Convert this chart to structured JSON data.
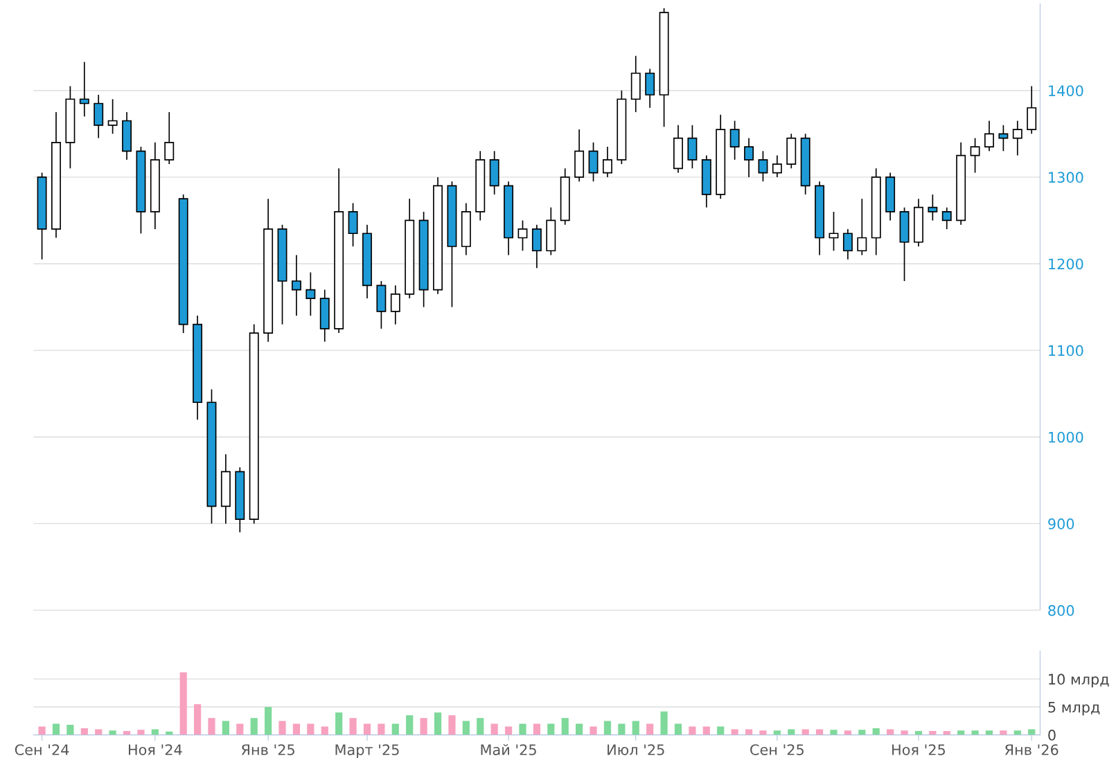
{
  "chart_data": [
    {
      "type": "candlestick",
      "categories": [
        null,
        null,
        null,
        null,
        null,
        null,
        null,
        null,
        null,
        null,
        null,
        null,
        null,
        null,
        null,
        null,
        null,
        null,
        null,
        null,
        null,
        null,
        null,
        null,
        null,
        null,
        null,
        null,
        null,
        null,
        null,
        null,
        null,
        null,
        null,
        null,
        null,
        null,
        null,
        null,
        null,
        null,
        null,
        null,
        null,
        null,
        null,
        null,
        null,
        null,
        null,
        null,
        null,
        null,
        null,
        null,
        null,
        null,
        null,
        null,
        null,
        null,
        null,
        null,
        null,
        null,
        null,
        null,
        null,
        null,
        null
      ],
      "ohlc": [
        [
          1300,
          1305,
          1205,
          1240
        ],
        [
          1240,
          1375,
          1230,
          1340
        ],
        [
          1340,
          1405,
          1310,
          1390
        ],
        [
          1390,
          1433,
          1370,
          1385
        ],
        [
          1385,
          1395,
          1345,
          1360
        ],
        [
          1360,
          1390,
          1350,
          1365
        ],
        [
          1365,
          1375,
          1320,
          1330
        ],
        [
          1330,
          1335,
          1235,
          1260
        ],
        [
          1260,
          1340,
          1240,
          1320
        ],
        [
          1320,
          1375,
          1315,
          1340
        ],
        [
          1275,
          1280,
          1120,
          1130
        ],
        [
          1130,
          1140,
          1020,
          1040
        ],
        [
          1040,
          1055,
          900,
          920
        ],
        [
          920,
          980,
          900,
          960
        ],
        [
          960,
          965,
          890,
          905
        ],
        [
          905,
          1130,
          900,
          1120
        ],
        [
          1120,
          1275,
          1110,
          1240
        ],
        [
          1240,
          1245,
          1130,
          1180
        ],
        [
          1180,
          1210,
          1140,
          1170
        ],
        [
          1170,
          1190,
          1140,
          1160
        ],
        [
          1160,
          1170,
          1110,
          1125
        ],
        [
          1125,
          1310,
          1120,
          1260
        ],
        [
          1260,
          1270,
          1220,
          1235
        ],
        [
          1235,
          1245,
          1160,
          1175
        ],
        [
          1175,
          1180,
          1125,
          1145
        ],
        [
          1145,
          1175,
          1130,
          1165
        ],
        [
          1165,
          1275,
          1160,
          1250
        ],
        [
          1250,
          1260,
          1150,
          1170
        ],
        [
          1170,
          1300,
          1165,
          1290
        ],
        [
          1290,
          1295,
          1150,
          1220
        ],
        [
          1220,
          1270,
          1210,
          1260
        ],
        [
          1260,
          1330,
          1250,
          1320
        ],
        [
          1320,
          1330,
          1280,
          1290
        ],
        [
          1290,
          1295,
          1210,
          1230
        ],
        [
          1230,
          1250,
          1215,
          1240
        ],
        [
          1240,
          1245,
          1195,
          1215
        ],
        [
          1215,
          1265,
          1210,
          1250
        ],
        [
          1250,
          1310,
          1245,
          1300
        ],
        [
          1300,
          1355,
          1295,
          1330
        ],
        [
          1330,
          1340,
          1295,
          1305
        ],
        [
          1305,
          1335,
          1300,
          1320
        ],
        [
          1320,
          1400,
          1315,
          1390
        ],
        [
          1390,
          1440,
          1375,
          1420
        ],
        [
          1420,
          1425,
          1380,
          1395
        ],
        [
          1395,
          1495,
          1358,
          1490
        ],
        [
          1310,
          1360,
          1305,
          1345
        ],
        [
          1345,
          1360,
          1310,
          1320
        ],
        [
          1320,
          1325,
          1265,
          1280
        ],
        [
          1280,
          1372,
          1275,
          1355
        ],
        [
          1355,
          1365,
          1320,
          1335
        ],
        [
          1335,
          1345,
          1300,
          1320
        ],
        [
          1320,
          1330,
          1295,
          1305
        ],
        [
          1305,
          1325,
          1300,
          1315
        ],
        [
          1315,
          1350,
          1310,
          1345
        ],
        [
          1345,
          1350,
          1280,
          1290
        ],
        [
          1290,
          1295,
          1210,
          1230
        ],
        [
          1230,
          1260,
          1215,
          1235
        ],
        [
          1235,
          1240,
          1205,
          1215
        ],
        [
          1215,
          1275,
          1210,
          1230
        ],
        [
          1230,
          1310,
          1210,
          1300
        ],
        [
          1300,
          1305,
          1250,
          1260
        ],
        [
          1260,
          1265,
          1180,
          1225
        ],
        [
          1225,
          1275,
          1220,
          1265
        ],
        [
          1265,
          1280,
          1250,
          1260
        ],
        [
          1260,
          1265,
          1240,
          1250
        ],
        [
          1250,
          1340,
          1245,
          1325
        ],
        [
          1325,
          1345,
          1305,
          1335
        ],
        [
          1335,
          1365,
          1330,
          1350
        ],
        [
          1350,
          1360,
          1330,
          1345
        ],
        [
          1345,
          1365,
          1325,
          1355
        ],
        [
          1355,
          1405,
          1350,
          1380
        ]
      ],
      "colors": [
        "#1e9bd7",
        "#ffffff",
        "#ffffff",
        "#1e9bd7",
        "#1e9bd7",
        "#ffffff",
        "#1e9bd7",
        "#1e9bd7",
        "#ffffff",
        "#ffffff",
        "#1e9bd7",
        "#1e9bd7",
        "#1e9bd7",
        "#ffffff",
        "#1e9bd7",
        "#ffffff",
        "#ffffff",
        "#1e9bd7",
        "#1e9bd7",
        "#1e9bd7",
        "#1e9bd7",
        "#ffffff",
        "#1e9bd7",
        "#1e9bd7",
        "#1e9bd7",
        "#ffffff",
        "#ffffff",
        "#1e9bd7",
        "#ffffff",
        "#1e9bd7",
        "#ffffff",
        "#ffffff",
        "#1e9bd7",
        "#1e9bd7",
        "#ffffff",
        "#1e9bd7",
        "#ffffff",
        "#ffffff",
        "#ffffff",
        "#1e9bd7",
        "#ffffff",
        "#ffffff",
        "#ffffff",
        "#1e9bd7",
        "#ffffff",
        "#ffffff",
        "#1e9bd7",
        "#1e9bd7",
        "#ffffff",
        "#1e9bd7",
        "#1e9bd7",
        "#1e9bd7",
        "#ffffff",
        "#ffffff",
        "#1e9bd7",
        "#1e9bd7",
        "#ffffff",
        "#1e9bd7",
        "#ffffff",
        "#ffffff",
        "#1e9bd7",
        "#1e9bd7",
        "#ffffff",
        "#1e9bd7",
        "#1e9bd7",
        "#ffffff",
        "#ffffff",
        "#ffffff",
        "#1e9bd7",
        "#ffffff",
        "#ffffff"
      ],
      "ylim": [
        800,
        1500
      ],
      "yticks": [
        800,
        900,
        1000,
        1100,
        1200,
        1300,
        1400
      ],
      "grid": "y",
      "tick_labels": "y"
    },
    {
      "type": "bar",
      "categories": [
        "Сен '24",
        null,
        null,
        null,
        null,
        null,
        null,
        null,
        "Ноя '24",
        null,
        null,
        null,
        null,
        null,
        null,
        null,
        "Янв '25",
        null,
        null,
        null,
        null,
        null,
        null,
        "Март '25",
        null,
        null,
        null,
        null,
        null,
        null,
        null,
        null,
        null,
        "Май '25",
        null,
        null,
        null,
        null,
        null,
        null,
        null,
        null,
        "Июл '25",
        null,
        null,
        null,
        null,
        null,
        null,
        null,
        null,
        null,
        "Сен '25",
        null,
        null,
        null,
        null,
        null,
        null,
        null,
        null,
        null,
        "Ноя '25",
        null,
        null,
        null,
        null,
        null,
        null,
        null,
        "Янв '26"
      ],
      "values": [
        1.5,
        2,
        1.8,
        1.2,
        1,
        0.8,
        0.7,
        0.9,
        1,
        0.6,
        11.2,
        5.5,
        3,
        2.5,
        2,
        3,
        5,
        2.5,
        2,
        2,
        1.5,
        4,
        3,
        2,
        2,
        2,
        3.5,
        3,
        4,
        3.5,
        2.5,
        3,
        2,
        1.5,
        2,
        2,
        2,
        3,
        2,
        1.5,
        2.5,
        2,
        2.5,
        2,
        4.2,
        2,
        1.5,
        1.5,
        1.5,
        1,
        1,
        0.8,
        0.8,
        1,
        1,
        1,
        0.9,
        0.8,
        0.9,
        1.2,
        1,
        0.8,
        0.7,
        0.7,
        0.7,
        0.8,
        0.8,
        0.8,
        0.8,
        0.8,
        1
      ],
      "colors": [
        "#f7a1bf",
        "#7ed99a",
        "#7ed99a",
        "#f7a1bf",
        "#f7a1bf",
        "#7ed99a",
        "#f7a1bf",
        "#f7a1bf",
        "#7ed99a",
        "#7ed99a",
        "#f7a1bf",
        "#f7a1bf",
        "#f7a1bf",
        "#7ed99a",
        "#f7a1bf",
        "#7ed99a",
        "#7ed99a",
        "#f7a1bf",
        "#f7a1bf",
        "#f7a1bf",
        "#f7a1bf",
        "#7ed99a",
        "#f7a1bf",
        "#f7a1bf",
        "#f7a1bf",
        "#7ed99a",
        "#7ed99a",
        "#f7a1bf",
        "#7ed99a",
        "#f7a1bf",
        "#7ed99a",
        "#7ed99a",
        "#f7a1bf",
        "#f7a1bf",
        "#7ed99a",
        "#f7a1bf",
        "#7ed99a",
        "#7ed99a",
        "#7ed99a",
        "#f7a1bf",
        "#7ed99a",
        "#7ed99a",
        "#7ed99a",
        "#f7a1bf",
        "#7ed99a",
        "#7ed99a",
        "#f7a1bf",
        "#f7a1bf",
        "#7ed99a",
        "#f7a1bf",
        "#f7a1bf",
        "#f7a1bf",
        "#7ed99a",
        "#7ed99a",
        "#f7a1bf",
        "#f7a1bf",
        "#7ed99a",
        "#f7a1bf",
        "#7ed99a",
        "#7ed99a",
        "#f7a1bf",
        "#f7a1bf",
        "#7ed99a",
        "#f7a1bf",
        "#f7a1bf",
        "#7ed99a",
        "#7ed99a",
        "#7ed99a",
        "#f7a1bf",
        "#7ed99a",
        "#7ed99a"
      ],
      "ylim": [
        0,
        15
      ],
      "yticks": [
        0,
        {
          "value": 5,
          "label": "5 млрд"
        },
        {
          "value": 10,
          "label": "10 млрд"
        }
      ],
      "grid": "y"
    }
  ]
}
